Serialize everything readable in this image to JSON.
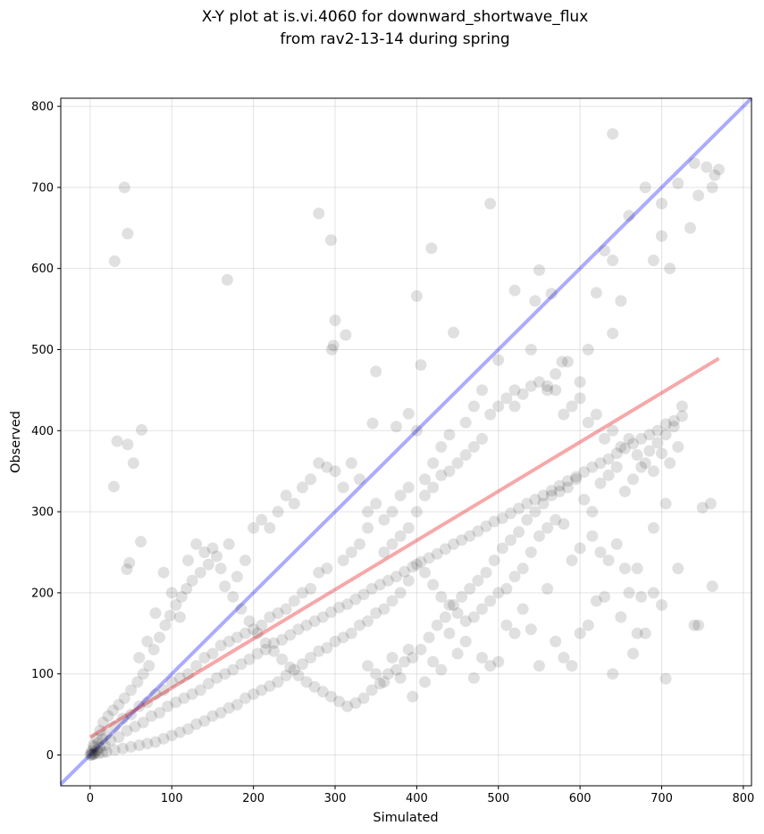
{
  "chart_data": {
    "type": "scatter",
    "title": [
      "X-Y plot at is.vi.4060 for downward_shortwave_flux",
      "from rav2-13-14 during spring"
    ],
    "xlabel": "Simulated",
    "ylabel": "Observed",
    "xlim": [
      -36,
      810
    ],
    "ylim": [
      -38,
      810
    ],
    "xticks": [
      0,
      100,
      200,
      300,
      400,
      500,
      600,
      700,
      800
    ],
    "yticks": [
      0,
      100,
      200,
      300,
      400,
      500,
      600,
      700,
      800
    ],
    "grid": true,
    "legend": "none",
    "colors": {
      "points": "#000000",
      "one_to_one": "#0000ff",
      "fit": "#e8191c"
    },
    "one_to_one_line": {
      "x": [
        -36,
        810
      ],
      "y": [
        -36,
        810
      ]
    },
    "fit_line": {
      "x": [
        0,
        770
      ],
      "y": [
        22,
        489
      ]
    },
    "points": [
      [
        42,
        700
      ],
      [
        46,
        643
      ],
      [
        30,
        609
      ],
      [
        168,
        586
      ],
      [
        280,
        668
      ],
      [
        295,
        635
      ],
      [
        640,
        766
      ],
      [
        418,
        625
      ],
      [
        300,
        536
      ],
      [
        298,
        505
      ],
      [
        296,
        500
      ],
      [
        313,
        518
      ],
      [
        400,
        566
      ],
      [
        445,
        521
      ],
      [
        490,
        680
      ],
      [
        33,
        387
      ],
      [
        46,
        383
      ],
      [
        63,
        401
      ],
      [
        53,
        360
      ],
      [
        29,
        331
      ],
      [
        62,
        263
      ],
      [
        48,
        237
      ],
      [
        45,
        229
      ],
      [
        350,
        473
      ],
      [
        346,
        409
      ],
      [
        375,
        405
      ],
      [
        390,
        421
      ],
      [
        400,
        400
      ],
      [
        405,
        481
      ],
      [
        520,
        573
      ],
      [
        550,
        598
      ],
      [
        565,
        569
      ],
      [
        578,
        485
      ],
      [
        560,
        450
      ],
      [
        545,
        560
      ],
      [
        620,
        570
      ],
      [
        630,
        622
      ],
      [
        640,
        610
      ],
      [
        660,
        665
      ],
      [
        680,
        700
      ],
      [
        700,
        680
      ],
      [
        720,
        705
      ],
      [
        740,
        730
      ],
      [
        755,
        725
      ],
      [
        765,
        715
      ],
      [
        770,
        722
      ],
      [
        762,
        700
      ],
      [
        745,
        690
      ],
      [
        735,
        650
      ],
      [
        710,
        600
      ],
      [
        690,
        610
      ],
      [
        700,
        640
      ],
      [
        650,
        560
      ],
      [
        640,
        520
      ],
      [
        610,
        500
      ],
      [
        600,
        460
      ],
      [
        585,
        485
      ],
      [
        570,
        450
      ],
      [
        540,
        500
      ],
      [
        500,
        487
      ],
      [
        520,
        430
      ],
      [
        480,
        450
      ],
      [
        470,
        430
      ],
      [
        460,
        410
      ],
      [
        440,
        395
      ],
      [
        430,
        380
      ],
      [
        420,
        360
      ],
      [
        410,
        340
      ],
      [
        390,
        330
      ],
      [
        380,
        320
      ],
      [
        370,
        300
      ],
      [
        360,
        290
      ],
      [
        340,
        280
      ],
      [
        330,
        260
      ],
      [
        320,
        250
      ],
      [
        310,
        240
      ],
      [
        290,
        230
      ],
      [
        280,
        225
      ],
      [
        270,
        205
      ],
      [
        260,
        200
      ],
      [
        250,
        190
      ],
      [
        240,
        180
      ],
      [
        230,
        175
      ],
      [
        220,
        170
      ],
      [
        210,
        160
      ],
      [
        200,
        155
      ],
      [
        190,
        150
      ],
      [
        180,
        145
      ],
      [
        170,
        140
      ],
      [
        160,
        135
      ],
      [
        150,
        125
      ],
      [
        140,
        120
      ],
      [
        130,
        110
      ],
      [
        120,
        100
      ],
      [
        110,
        95
      ],
      [
        100,
        90
      ],
      [
        90,
        80
      ],
      [
        80,
        75
      ],
      [
        70,
        65
      ],
      [
        60,
        60
      ],
      [
        50,
        50
      ],
      [
        40,
        45
      ],
      [
        30,
        35
      ],
      [
        20,
        25
      ],
      [
        15,
        20
      ],
      [
        10,
        15
      ],
      [
        5,
        10
      ],
      [
        2,
        5
      ],
      [
        1,
        2
      ],
      [
        0,
        0
      ],
      [
        3,
        1
      ],
      [
        6,
        3
      ],
      [
        8,
        6
      ],
      [
        12,
        9
      ],
      [
        18,
        12
      ],
      [
        25,
        18
      ],
      [
        35,
        22
      ],
      [
        45,
        30
      ],
      [
        55,
        35
      ],
      [
        65,
        40
      ],
      [
        75,
        48
      ],
      [
        85,
        52
      ],
      [
        95,
        60
      ],
      [
        105,
        65
      ],
      [
        115,
        70
      ],
      [
        125,
        75
      ],
      [
        135,
        80
      ],
      [
        145,
        88
      ],
      [
        155,
        95
      ],
      [
        165,
        100
      ],
      [
        175,
        105
      ],
      [
        185,
        112
      ],
      [
        195,
        118
      ],
      [
        205,
        125
      ],
      [
        215,
        130
      ],
      [
        225,
        138
      ],
      [
        235,
        142
      ],
      [
        245,
        148
      ],
      [
        255,
        155
      ],
      [
        265,
        160
      ],
      [
        275,
        165
      ],
      [
        285,
        170
      ],
      [
        295,
        176
      ],
      [
        305,
        182
      ],
      [
        315,
        186
      ],
      [
        325,
        192
      ],
      [
        335,
        198
      ],
      [
        345,
        205
      ],
      [
        355,
        210
      ],
      [
        365,
        215
      ],
      [
        375,
        220
      ],
      [
        385,
        226
      ],
      [
        395,
        232
      ],
      [
        405,
        238
      ],
      [
        415,
        243
      ],
      [
        425,
        248
      ],
      [
        435,
        254
      ],
      [
        445,
        260
      ],
      [
        455,
        265
      ],
      [
        465,
        270
      ],
      [
        475,
        276
      ],
      [
        485,
        282
      ],
      [
        495,
        288
      ],
      [
        505,
        292
      ],
      [
        515,
        298
      ],
      [
        525,
        304
      ],
      [
        535,
        310
      ],
      [
        545,
        315
      ],
      [
        555,
        320
      ],
      [
        565,
        326
      ],
      [
        575,
        332
      ],
      [
        585,
        338
      ],
      [
        595,
        343
      ],
      [
        605,
        349
      ],
      [
        615,
        355
      ],
      [
        625,
        360
      ],
      [
        635,
        365
      ],
      [
        645,
        372
      ],
      [
        655,
        378
      ],
      [
        665,
        384
      ],
      [
        675,
        390
      ],
      [
        685,
        395
      ],
      [
        695,
        400
      ],
      [
        705,
        408
      ],
      [
        715,
        412
      ],
      [
        725,
        418
      ],
      [
        60,
        120
      ],
      [
        70,
        140
      ],
      [
        80,
        175
      ],
      [
        90,
        225
      ],
      [
        100,
        200
      ],
      [
        110,
        170
      ],
      [
        120,
        240
      ],
      [
        130,
        260
      ],
      [
        140,
        250
      ],
      [
        150,
        255
      ],
      [
        160,
        230
      ],
      [
        170,
        260
      ],
      [
        180,
        220
      ],
      [
        190,
        240
      ],
      [
        200,
        280
      ],
      [
        210,
        290
      ],
      [
        220,
        280
      ],
      [
        230,
        300
      ],
      [
        240,
        320
      ],
      [
        250,
        310
      ],
      [
        260,
        330
      ],
      [
        270,
        340
      ],
      [
        280,
        360
      ],
      [
        290,
        355
      ],
      [
        300,
        350
      ],
      [
        310,
        330
      ],
      [
        320,
        360
      ],
      [
        330,
        340
      ],
      [
        340,
        300
      ],
      [
        350,
        310
      ],
      [
        360,
        250
      ],
      [
        370,
        260
      ],
      [
        380,
        270
      ],
      [
        390,
        280
      ],
      [
        400,
        300
      ],
      [
        410,
        320
      ],
      [
        420,
        330
      ],
      [
        430,
        345
      ],
      [
        440,
        350
      ],
      [
        450,
        360
      ],
      [
        460,
        370
      ],
      [
        470,
        380
      ],
      [
        480,
        390
      ],
      [
        490,
        420
      ],
      [
        500,
        430
      ],
      [
        510,
        440
      ],
      [
        520,
        450
      ],
      [
        530,
        445
      ],
      [
        540,
        455
      ],
      [
        550,
        460
      ],
      [
        560,
        455
      ],
      [
        570,
        470
      ],
      [
        580,
        420
      ],
      [
        590,
        430
      ],
      [
        600,
        440
      ],
      [
        610,
        410
      ],
      [
        620,
        420
      ],
      [
        630,
        390
      ],
      [
        640,
        400
      ],
      [
        650,
        380
      ],
      [
        660,
        390
      ],
      [
        670,
        370
      ],
      [
        680,
        360
      ],
      [
        690,
        350
      ],
      [
        700,
        372
      ],
      [
        710,
        360
      ],
      [
        720,
        380
      ],
      [
        340,
        110
      ],
      [
        350,
        100
      ],
      [
        360,
        90
      ],
      [
        370,
        120
      ],
      [
        380,
        95
      ],
      [
        390,
        130
      ],
      [
        395,
        72
      ],
      [
        410,
        90
      ],
      [
        420,
        115
      ],
      [
        430,
        105
      ],
      [
        440,
        150
      ],
      [
        450,
        125
      ],
      [
        460,
        140
      ],
      [
        470,
        95
      ],
      [
        480,
        120
      ],
      [
        490,
        110
      ],
      [
        500,
        115
      ],
      [
        510,
        160
      ],
      [
        520,
        150
      ],
      [
        530,
        180
      ],
      [
        540,
        155
      ],
      [
        550,
        110
      ],
      [
        560,
        205
      ],
      [
        570,
        140
      ],
      [
        580,
        120
      ],
      [
        590,
        110
      ],
      [
        600,
        150
      ],
      [
        610,
        160
      ],
      [
        620,
        190
      ],
      [
        630,
        195
      ],
      [
        640,
        100
      ],
      [
        650,
        170
      ],
      [
        660,
        200
      ],
      [
        670,
        230
      ],
      [
        680,
        150
      ],
      [
        690,
        200
      ],
      [
        700,
        185
      ],
      [
        705,
        94
      ],
      [
        720,
        230
      ],
      [
        740,
        160
      ],
      [
        750,
        305
      ],
      [
        760,
        310
      ],
      [
        762,
        208
      ],
      [
        745,
        160
      ],
      [
        705,
        310
      ],
      [
        690,
        280
      ],
      [
        675,
        195
      ],
      [
        670,
        150
      ],
      [
        665,
        125
      ],
      [
        655,
        230
      ],
      [
        645,
        260
      ],
      [
        635,
        240
      ],
      [
        625,
        250
      ],
      [
        615,
        270
      ],
      [
        600,
        255
      ],
      [
        590,
        240
      ],
      [
        580,
        285
      ],
      [
        570,
        290
      ],
      [
        560,
        280
      ],
      [
        550,
        270
      ],
      [
        540,
        250
      ],
      [
        530,
        230
      ],
      [
        520,
        220
      ],
      [
        510,
        205
      ],
      [
        500,
        200
      ],
      [
        490,
        190
      ],
      [
        480,
        180
      ],
      [
        470,
        170
      ],
      [
        460,
        165
      ],
      [
        450,
        175
      ],
      [
        440,
        185
      ],
      [
        430,
        195
      ],
      [
        420,
        210
      ],
      [
        410,
        225
      ],
      [
        400,
        235
      ],
      [
        390,
        215
      ],
      [
        380,
        200
      ],
      [
        370,
        190
      ],
      [
        360,
        180
      ],
      [
        350,
        175
      ],
      [
        340,
        165
      ],
      [
        330,
        160
      ],
      [
        320,
        150
      ],
      [
        310,
        145
      ],
      [
        300,
        140
      ],
      [
        290,
        132
      ],
      [
        280,
        128
      ],
      [
        270,
        120
      ],
      [
        260,
        112
      ],
      [
        250,
        105
      ],
      [
        240,
        98
      ],
      [
        230,
        90
      ],
      [
        220,
        85
      ],
      [
        210,
        80
      ],
      [
        200,
        75
      ],
      [
        190,
        70
      ],
      [
        180,
        62
      ],
      [
        170,
        58
      ],
      [
        160,
        52
      ],
      [
        150,
        48
      ],
      [
        140,
        42
      ],
      [
        130,
        38
      ],
      [
        120,
        32
      ],
      [
        110,
        28
      ],
      [
        100,
        24
      ],
      [
        90,
        20
      ],
      [
        80,
        16
      ],
      [
        70,
        14
      ],
      [
        60,
        12
      ],
      [
        50,
        10
      ],
      [
        40,
        8
      ],
      [
        30,
        6
      ],
      [
        20,
        4
      ],
      [
        15,
        3
      ],
      [
        10,
        2
      ],
      [
        5,
        1
      ],
      [
        2,
        0
      ],
      [
        4,
        12
      ],
      [
        8,
        20
      ],
      [
        12,
        30
      ],
      [
        16,
        40
      ],
      [
        22,
        48
      ],
      [
        28,
        55
      ],
      [
        35,
        62
      ],
      [
        42,
        70
      ],
      [
        50,
        80
      ],
      [
        58,
        90
      ],
      [
        65,
        100
      ],
      [
        72,
        110
      ],
      [
        78,
        130
      ],
      [
        85,
        145
      ],
      [
        92,
        160
      ],
      [
        98,
        172
      ],
      [
        105,
        185
      ],
      [
        112,
        195
      ],
      [
        118,
        205
      ],
      [
        125,
        215
      ],
      [
        135,
        225
      ],
      [
        145,
        235
      ],
      [
        155,
        245
      ],
      [
        165,
        208
      ],
      [
        175,
        195
      ],
      [
        185,
        180
      ],
      [
        195,
        165
      ],
      [
        205,
        150
      ],
      [
        215,
        138
      ],
      [
        225,
        128
      ],
      [
        235,
        118
      ],
      [
        245,
        108
      ],
      [
        255,
        98
      ],
      [
        265,
        90
      ],
      [
        275,
        84
      ],
      [
        285,
        78
      ],
      [
        295,
        72
      ],
      [
        305,
        66
      ],
      [
        315,
        60
      ],
      [
        325,
        64
      ],
      [
        335,
        70
      ],
      [
        345,
        80
      ],
      [
        355,
        88
      ],
      [
        365,
        100
      ],
      [
        375,
        105
      ],
      [
        385,
        115
      ],
      [
        395,
        120
      ],
      [
        405,
        130
      ],
      [
        415,
        145
      ],
      [
        425,
        160
      ],
      [
        435,
        170
      ],
      [
        445,
        185
      ],
      [
        455,
        195
      ],
      [
        465,
        205
      ],
      [
        475,
        215
      ],
      [
        485,
        225
      ],
      [
        495,
        240
      ],
      [
        505,
        255
      ],
      [
        515,
        265
      ],
      [
        525,
        275
      ],
      [
        535,
        290
      ],
      [
        545,
        300
      ],
      [
        555,
        310
      ],
      [
        565,
        320
      ],
      [
        575,
        325
      ],
      [
        585,
        330
      ],
      [
        595,
        340
      ],
      [
        605,
        315
      ],
      [
        615,
        300
      ],
      [
        625,
        335
      ],
      [
        635,
        345
      ],
      [
        645,
        355
      ],
      [
        655,
        325
      ],
      [
        665,
        340
      ],
      [
        675,
        355
      ],
      [
        685,
        375
      ],
      [
        695,
        385
      ],
      [
        705,
        395
      ],
      [
        715,
        405
      ],
      [
        725,
        430
      ]
    ]
  }
}
